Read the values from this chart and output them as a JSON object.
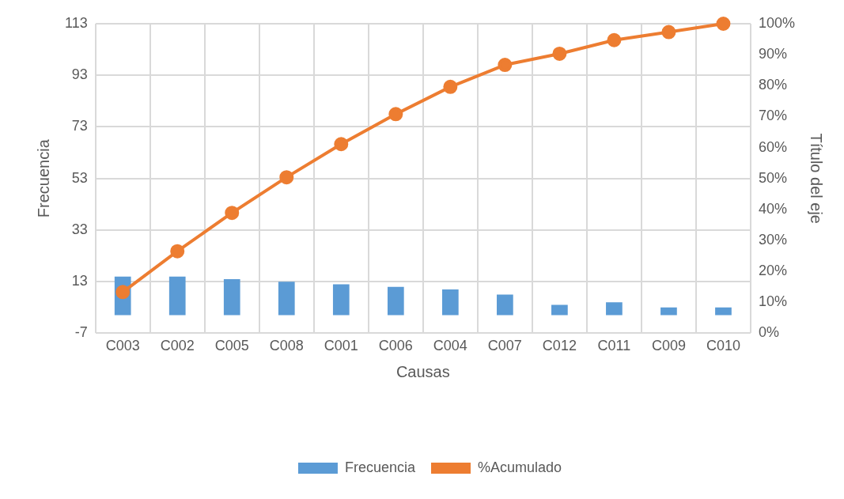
{
  "chart_data": {
    "type": "bar",
    "xlabel": "Causas",
    "ylabel": "Frecuencia",
    "y2label": "Título del eje",
    "categories": [
      "C003",
      "C002",
      "C005",
      "C008",
      "C001",
      "C006",
      "C004",
      "C007",
      "C012",
      "C011",
      "C009",
      "C010"
    ],
    "series": [
      {
        "name": "Frecuencia",
        "color": "#5b9bd5",
        "values": [
          15,
          15,
          14,
          13,
          12,
          11,
          10,
          8,
          4,
          5,
          3,
          3
        ]
      },
      {
        "name": "%Acumulado",
        "type": "line",
        "axis": "y2",
        "color": "#ed7d31",
        "marker": "circle",
        "values": [
          13.3,
          26.5,
          38.9,
          50.4,
          61.1,
          70.8,
          79.6,
          86.7,
          90.3,
          94.7,
          97.3,
          100
        ]
      }
    ],
    "ylim": [
      -7,
      113
    ],
    "yticks": [
      -7,
      13,
      33,
      53,
      73,
      93,
      113
    ],
    "y2lim": [
      0,
      100
    ],
    "y2ticks": [
      {
        "value": 0,
        "label": "0%"
      },
      {
        "value": 10,
        "label": "10%"
      },
      {
        "value": 20,
        "label": "20%"
      },
      {
        "value": 30,
        "label": "30%"
      },
      {
        "value": 40,
        "label": "40%"
      },
      {
        "value": 50,
        "label": "50%"
      },
      {
        "value": 60,
        "label": "60%"
      },
      {
        "value": 70,
        "label": "70%"
      },
      {
        "value": 80,
        "label": "80%"
      },
      {
        "value": 90,
        "label": "90%"
      },
      {
        "value": 100,
        "label": "100%"
      }
    ],
    "grid": true,
    "legend": "bottom"
  }
}
